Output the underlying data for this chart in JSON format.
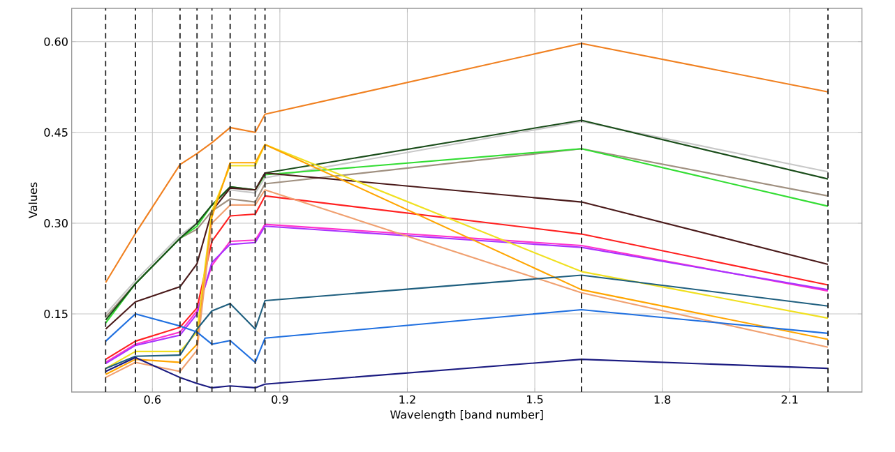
{
  "chart_data": {
    "type": "line",
    "xlabel": "Wavelength [band number]",
    "ylabel": "Values",
    "x": [
      0.49,
      0.56,
      0.665,
      0.705,
      0.74,
      0.783,
      0.842,
      0.865,
      1.61,
      2.19
    ],
    "series": [
      {
        "color": "#f08020",
        "values": [
          0.202,
          0.283,
          0.397,
          0.415,
          0.433,
          0.458,
          0.45,
          0.48,
          0.597,
          0.517
        ]
      },
      {
        "color": "#c8c8c8",
        "values": [
          0.15,
          0.205,
          0.28,
          0.3,
          0.33,
          0.355,
          0.35,
          0.375,
          0.468,
          0.385
        ]
      },
      {
        "color": "#a09080",
        "values": [
          0.145,
          0.2,
          0.275,
          0.29,
          0.32,
          0.34,
          0.335,
          0.365,
          0.423,
          0.345
        ]
      },
      {
        "color": "#33dd33",
        "values": [
          0.135,
          0.2,
          0.275,
          0.295,
          0.33,
          0.36,
          0.355,
          0.38,
          0.423,
          0.328
        ]
      },
      {
        "color": "#1a4d1a",
        "values": [
          0.14,
          0.2,
          0.275,
          0.3,
          0.33,
          0.36,
          0.355,
          0.383,
          0.47,
          0.373
        ]
      },
      {
        "color": "#4a1a1a",
        "values": [
          0.125,
          0.17,
          0.195,
          0.233,
          0.32,
          0.358,
          0.355,
          0.383,
          0.335,
          0.232
        ]
      },
      {
        "color": "#ff2020",
        "values": [
          0.075,
          0.105,
          0.128,
          0.16,
          0.27,
          0.312,
          0.315,
          0.345,
          0.282,
          0.198
        ]
      },
      {
        "color": "#ff33cc",
        "values": [
          0.07,
          0.1,
          0.12,
          0.155,
          0.23,
          0.27,
          0.272,
          0.298,
          0.263,
          0.188
        ]
      },
      {
        "color": "#aa33ff",
        "values": [
          0.068,
          0.098,
          0.115,
          0.15,
          0.235,
          0.265,
          0.268,
          0.295,
          0.26,
          0.19
        ]
      },
      {
        "color": "#f0e020",
        "values": [
          0.06,
          0.088,
          0.088,
          0.12,
          0.32,
          0.395,
          0.395,
          0.43,
          0.22,
          0.143
        ]
      },
      {
        "color": "#ffa500",
        "values": [
          0.05,
          0.075,
          0.07,
          0.1,
          0.31,
          0.4,
          0.4,
          0.43,
          0.19,
          0.108
        ]
      },
      {
        "color": "#f0a070",
        "values": [
          0.045,
          0.07,
          0.055,
          0.09,
          0.3,
          0.33,
          0.33,
          0.355,
          0.185,
          0.095
        ]
      },
      {
        "color": "#1f5f7f",
        "values": [
          0.06,
          0.08,
          0.082,
          0.125,
          0.155,
          0.167,
          0.125,
          0.172,
          0.214,
          0.163
        ]
      },
      {
        "color": "#2070e0",
        "values": [
          0.105,
          0.15,
          0.13,
          0.12,
          0.1,
          0.106,
          0.07,
          0.11,
          0.157,
          0.118
        ]
      },
      {
        "color": "#1a1a80",
        "values": [
          0.055,
          0.078,
          0.045,
          0.035,
          0.028,
          0.031,
          0.028,
          0.034,
          0.075,
          0.06
        ]
      }
    ],
    "xlim": [
      0.41,
      2.27
    ],
    "ylim": [
      0.021,
      0.655
    ],
    "xticks": [
      0.6,
      0.9,
      1.2,
      1.5,
      1.8,
      2.1
    ],
    "yticks": [
      {
        "value": 0.15,
        "label": "0.15"
      },
      {
        "value": 0.3,
        "label": "0.30"
      },
      {
        "value": 0.45,
        "label": "0.45"
      },
      {
        "value": 0.6,
        "label": "0.60"
      }
    ],
    "grid": true,
    "ref_lines": [
      {
        "axis": "x",
        "value": 0.49,
        "color": "#222222",
        "line_style": "dashed"
      },
      {
        "axis": "x",
        "value": 0.56,
        "color": "#222222",
        "line_style": "dashed"
      },
      {
        "axis": "x",
        "value": 0.665,
        "color": "#222222",
        "line_style": "dashed"
      },
      {
        "axis": "x",
        "value": 0.705,
        "color": "#222222",
        "line_style": "dashed"
      },
      {
        "axis": "x",
        "value": 0.74,
        "color": "#222222",
        "line_style": "dashed"
      },
      {
        "axis": "x",
        "value": 0.783,
        "color": "#222222",
        "line_style": "dashed"
      },
      {
        "axis": "x",
        "value": 0.842,
        "color": "#222222",
        "line_style": "dashed"
      },
      {
        "axis": "x",
        "value": 0.865,
        "color": "#222222",
        "line_style": "dashed"
      },
      {
        "axis": "x",
        "value": 1.61,
        "color": "#222222",
        "line_style": "dashed"
      },
      {
        "axis": "x",
        "value": 2.19,
        "color": "#222222",
        "line_style": "dashed"
      }
    ]
  }
}
